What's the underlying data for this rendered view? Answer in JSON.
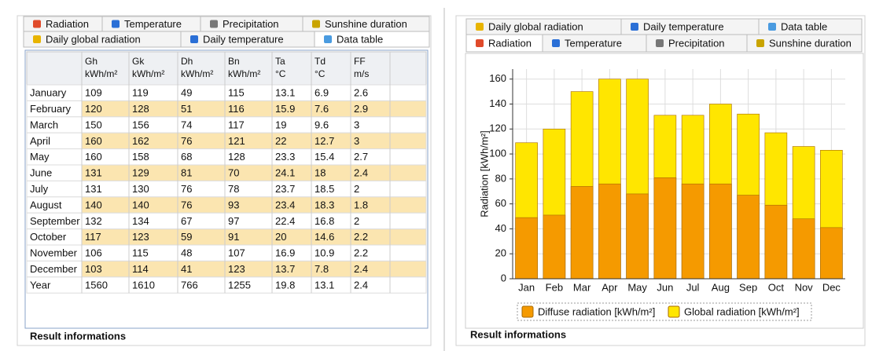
{
  "left_panel": {
    "tabs_row1": [
      "Radiation",
      "Temperature",
      "Precipitation",
      "Sunshine duration"
    ],
    "tabs_row2": [
      "Daily global radiation",
      "Daily temperature",
      "Data table"
    ],
    "table": {
      "columns": [
        {
          "name": "Gh",
          "unit": "kWh/m²"
        },
        {
          "name": "Gk",
          "unit": "kWh/m²"
        },
        {
          "name": "Dh",
          "unit": "kWh/m²"
        },
        {
          "name": "Bn",
          "unit": "kWh/m²"
        },
        {
          "name": "Ta",
          "unit": "°C"
        },
        {
          "name": "Td",
          "unit": "°C"
        },
        {
          "name": "FF",
          "unit": "m/s"
        }
      ],
      "rows": [
        [
          "January",
          109,
          119,
          49,
          115,
          13.1,
          6.9,
          2.6
        ],
        [
          "February",
          120,
          128,
          51,
          116,
          15.9,
          7.6,
          2.9
        ],
        [
          "March",
          150,
          156,
          74,
          117,
          19,
          9.6,
          3
        ],
        [
          "April",
          160,
          162,
          76,
          121,
          22,
          12.7,
          3
        ],
        [
          "May",
          160,
          158,
          68,
          128,
          23.3,
          15.4,
          2.7
        ],
        [
          "June",
          131,
          129,
          81,
          70,
          24.1,
          18,
          2.4
        ],
        [
          "July",
          131,
          130,
          76,
          78,
          23.7,
          18.5,
          2
        ],
        [
          "August",
          140,
          140,
          76,
          93,
          23.4,
          18.3,
          1.8
        ],
        [
          "September",
          132,
          134,
          67,
          97,
          22.4,
          16.8,
          2
        ],
        [
          "October",
          117,
          123,
          59,
          91,
          20,
          14.6,
          2.2
        ],
        [
          "November",
          106,
          115,
          48,
          107,
          16.9,
          10.9,
          2.2
        ],
        [
          "December",
          103,
          114,
          41,
          123,
          13.7,
          7.8,
          2.4
        ],
        [
          "Year",
          1560,
          1610,
          766,
          1255,
          19.8,
          13.1,
          2.4
        ]
      ]
    },
    "footer": "Result informations"
  },
  "right_panel": {
    "tabs_row1": [
      "Daily global radiation",
      "Daily temperature",
      "Data table"
    ],
    "tabs_row2": [
      "Radiation",
      "Temperature",
      "Precipitation",
      "Sunshine duration"
    ],
    "footer": "Result informations"
  },
  "chart_data": {
    "type": "bar",
    "y_label": "Radiation [kWh/m²]",
    "categories": [
      "Jan",
      "Feb",
      "Mar",
      "Apr",
      "May",
      "Jun",
      "Jul",
      "Aug",
      "Sep",
      "Oct",
      "Nov",
      "Dec"
    ],
    "series": [
      {
        "name": "Global radiation [kWh/m²]",
        "color": "#ffe600",
        "values": [
          109,
          120,
          150,
          160,
          160,
          131,
          131,
          140,
          132,
          117,
          106,
          103
        ]
      },
      {
        "name": "Diffuse radiation [kWh/m²]",
        "color": "#f59a00",
        "values": [
          49,
          51,
          74,
          76,
          68,
          81,
          76,
          76,
          67,
          59,
          48,
          41
        ]
      }
    ],
    "ylim": [
      0,
      168
    ],
    "yticks": [
      0,
      20,
      40,
      60,
      80,
      100,
      120,
      140,
      160
    ],
    "grid": true
  }
}
